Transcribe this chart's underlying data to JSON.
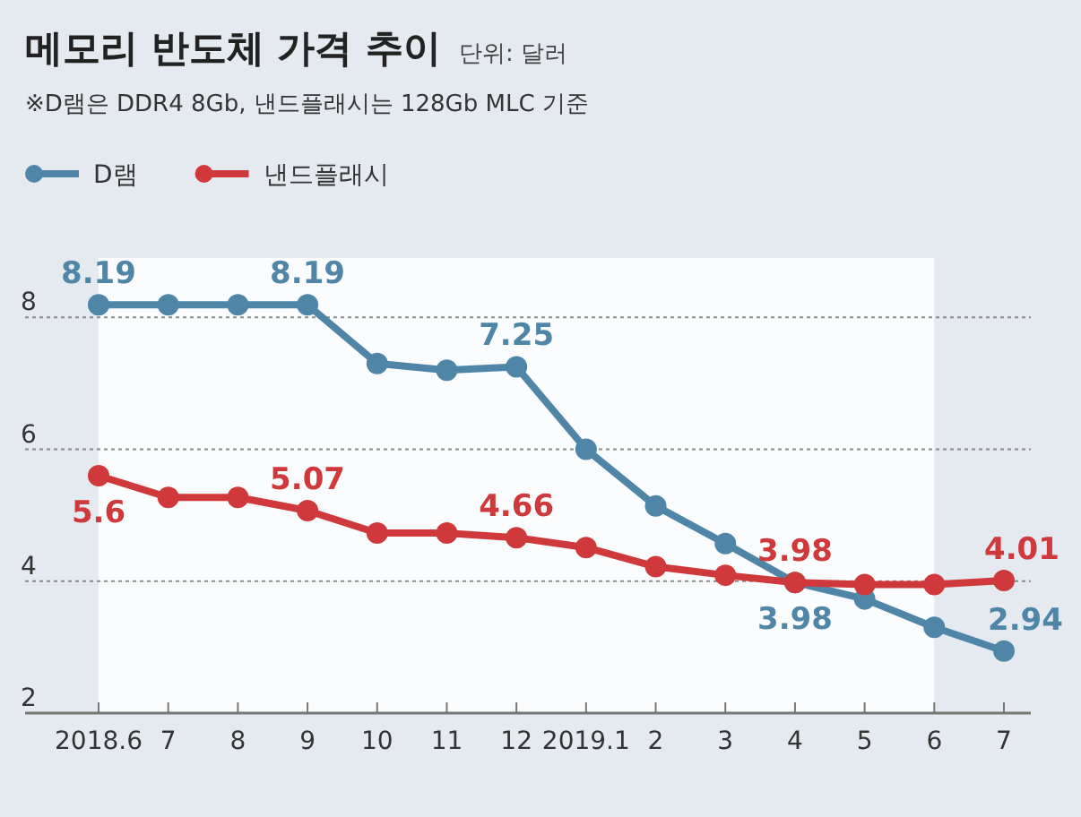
{
  "chart_data": {
    "type": "line",
    "title": "메모리 반도체 가격 추이",
    "subtitle": "※D램은 DDR4 8Gb, 낸드플래시는 128Gb MLC 기준",
    "annotations": [
      "단위: 달러"
    ],
    "categories": [
      "2018.6",
      "7",
      "8",
      "9",
      "10",
      "11",
      "12",
      "2019.1",
      "2",
      "3",
      "4",
      "5",
      "6",
      "7"
    ],
    "series": [
      {
        "name": "D램",
        "color": "#4f86a8",
        "values": [
          8.19,
          8.19,
          8.19,
          8.19,
          7.3,
          7.2,
          7.25,
          6.0,
          5.14,
          4.57,
          3.98,
          3.73,
          3.3,
          2.94
        ],
        "value_labels": [
          "8.19",
          null,
          null,
          "8.19",
          null,
          null,
          "7.25",
          null,
          null,
          null,
          "3.98",
          null,
          null,
          "2.94"
        ]
      },
      {
        "name": "낸드플래시",
        "color": "#d0393b",
        "values": [
          5.6,
          5.27,
          5.27,
          5.07,
          4.73,
          4.73,
          4.66,
          4.51,
          4.22,
          4.09,
          3.98,
          3.95,
          3.95,
          4.01
        ],
        "value_labels": [
          "5.6",
          null,
          null,
          "5.07",
          null,
          null,
          "4.66",
          null,
          null,
          null,
          "3.98",
          null,
          null,
          "4.01"
        ]
      }
    ],
    "ylim": [
      2,
      8.9
    ],
    "yticks": [
      2,
      4,
      6,
      8
    ],
    "grid": "y",
    "legend": "top left",
    "marker": "circle",
    "line_style": "solid",
    "bands": [
      {
        "axis": "x",
        "from": "2018.6",
        "to": "6",
        "color": "#fbfcfd"
      }
    ]
  }
}
